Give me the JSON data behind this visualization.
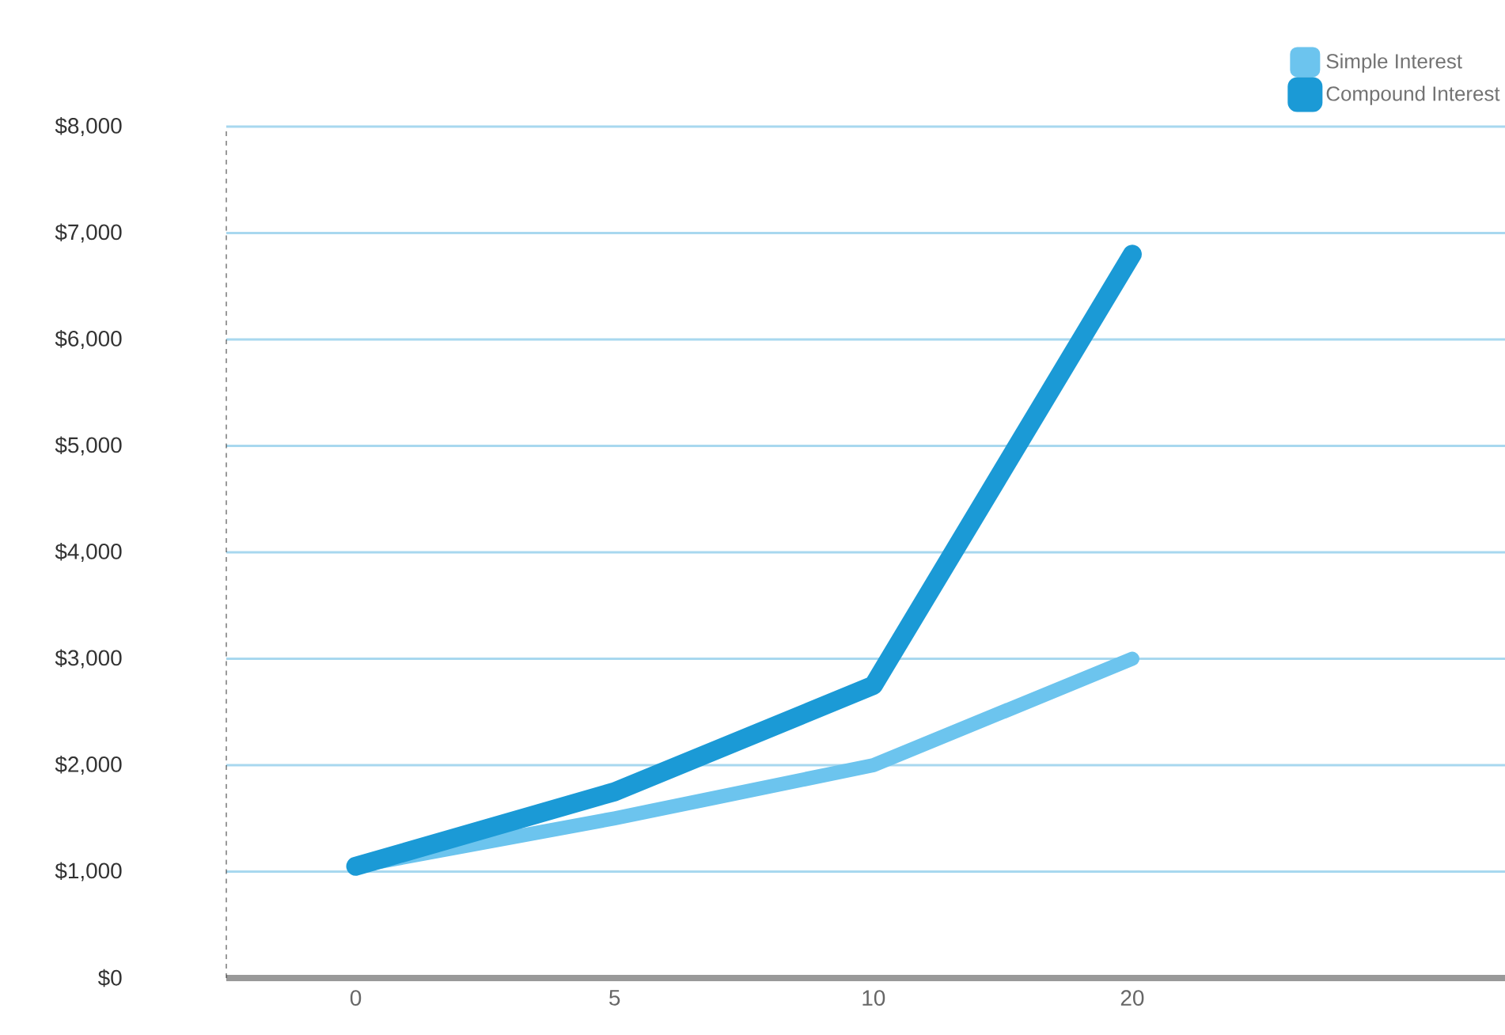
{
  "chart_data": {
    "type": "line",
    "categories": [
      "0",
      "5",
      "10",
      "20"
    ],
    "series": [
      {
        "name": "Simple Interest",
        "color": "#6cc4ee",
        "values": [
          1050,
          1500,
          2000,
          3000
        ]
      },
      {
        "name": "Compound Interest",
        "color": "#1b9ad6",
        "values": [
          1050,
          1750,
          2750,
          6800
        ]
      }
    ],
    "ylim": [
      0,
      8000
    ],
    "yticks": [
      {
        "value": 0,
        "label": "$0"
      },
      {
        "value": 1000,
        "label": "$1,000"
      },
      {
        "value": 2000,
        "label": "$2,000"
      },
      {
        "value": 3000,
        "label": "$3,000"
      },
      {
        "value": 4000,
        "label": "$4,000"
      },
      {
        "value": 5000,
        "label": "$5,000"
      },
      {
        "value": 6000,
        "label": "$6,000"
      },
      {
        "value": 7000,
        "label": "$7,000"
      },
      {
        "value": 8000,
        "label": "$8,000"
      }
    ],
    "grid": "y",
    "legend": "top right",
    "marker": "none",
    "line_style": "solid"
  }
}
